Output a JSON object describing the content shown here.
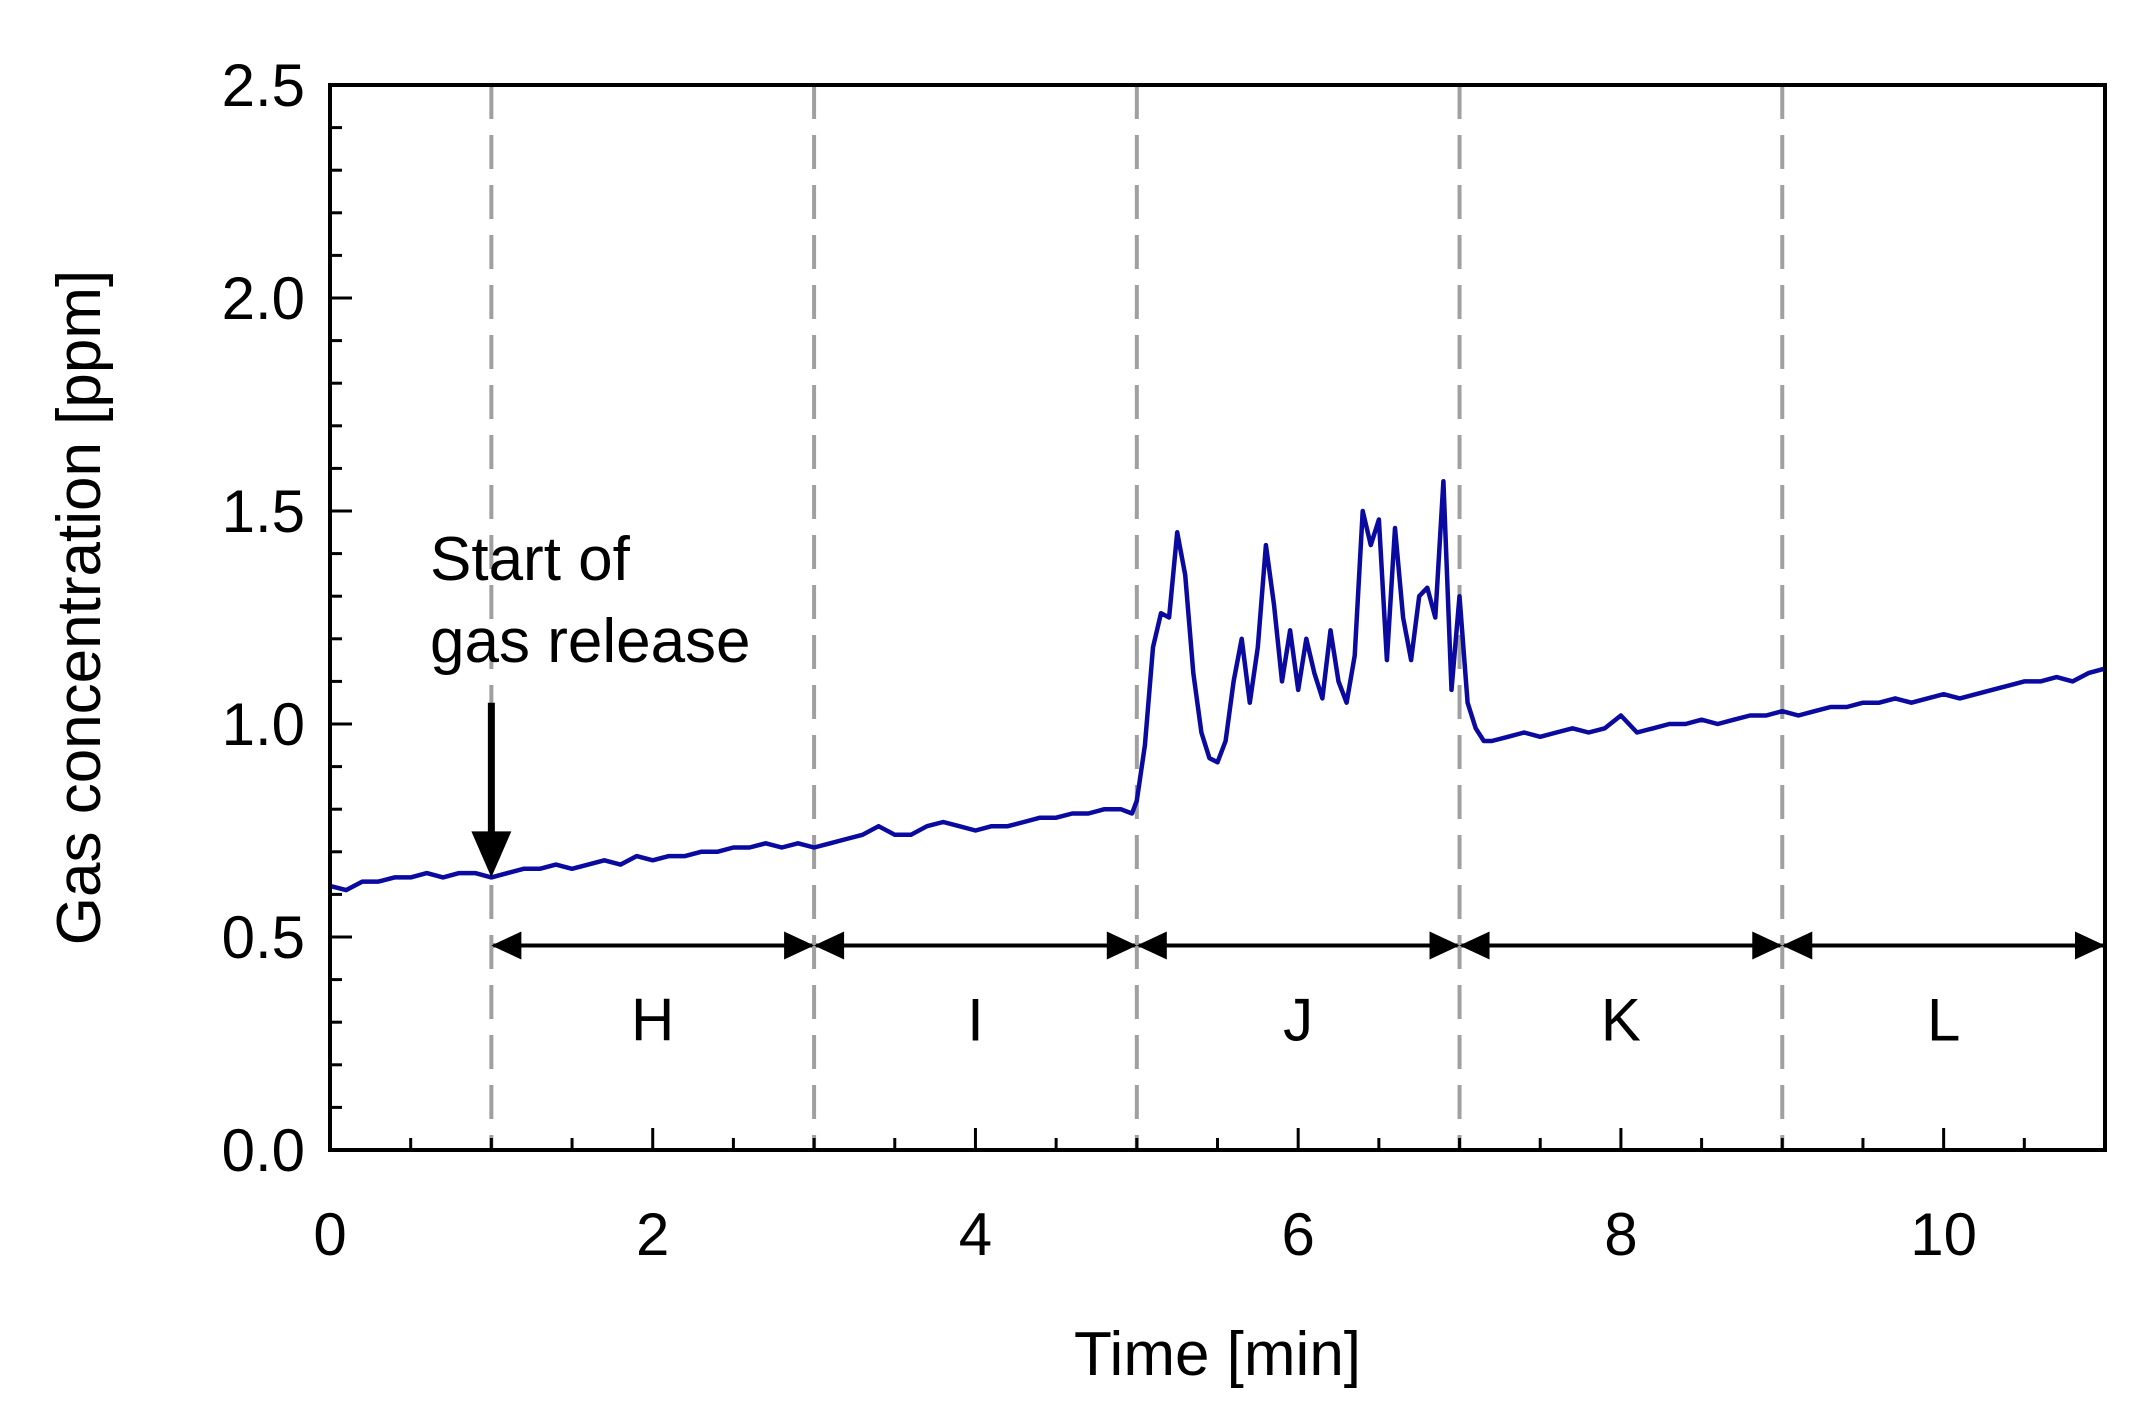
{
  "chart_data": {
    "type": "line",
    "title": "",
    "xlabel": "Time [min]",
    "ylabel": "Gas concentration [ppm]",
    "xlim": [
      0,
      11
    ],
    "ylim": [
      0,
      2.5
    ],
    "x_ticks": [
      0,
      2,
      4,
      6,
      8,
      10
    ],
    "x_tick_labels": [
      "0",
      "2",
      "4",
      "6",
      "8",
      "10"
    ],
    "y_ticks": [
      0,
      0.5,
      1.0,
      1.5,
      2.0,
      2.5
    ],
    "y_tick_labels": [
      "0.0",
      "0.5",
      "1.0",
      "1.5",
      "2.0",
      "2.5"
    ],
    "grid": false,
    "line_color": "#0a0aa0",
    "divider_color": "#a0a0a0",
    "series": [
      {
        "x": [
          0,
          0.1,
          0.2,
          0.3,
          0.4,
          0.5,
          0.6,
          0.7,
          0.8,
          0.9,
          1.0,
          1.1,
          1.2,
          1.3,
          1.4,
          1.5,
          1.6,
          1.7,
          1.8,
          1.9,
          2.0,
          2.1,
          2.2,
          2.3,
          2.4,
          2.5,
          2.6,
          2.7,
          2.8,
          2.9,
          3.0,
          3.1,
          3.2,
          3.3,
          3.4,
          3.5,
          3.6,
          3.7,
          3.8,
          3.9,
          4.0,
          4.1,
          4.2,
          4.3,
          4.4,
          4.5,
          4.6,
          4.7,
          4.8,
          4.9,
          4.97,
          5.0,
          5.05,
          5.1,
          5.15,
          5.2,
          5.25,
          5.3,
          5.35,
          5.4,
          5.45,
          5.5,
          5.55,
          5.6,
          5.65,
          5.7,
          5.75,
          5.8,
          5.85,
          5.9,
          5.95,
          6.0,
          6.05,
          6.1,
          6.15,
          6.2,
          6.25,
          6.3,
          6.35,
          6.4,
          6.45,
          6.5,
          6.55,
          6.6,
          6.65,
          6.7,
          6.75,
          6.8,
          6.85,
          6.9,
          6.95,
          7.0,
          7.05,
          7.1,
          7.15,
          7.2,
          7.3,
          7.4,
          7.5,
          7.6,
          7.7,
          7.8,
          7.9,
          8.0,
          8.1,
          8.2,
          8.3,
          8.4,
          8.5,
          8.6,
          8.7,
          8.8,
          8.9,
          9.0,
          9.1,
          9.2,
          9.3,
          9.4,
          9.5,
          9.6,
          9.7,
          9.8,
          9.9,
          10.0,
          10.1,
          10.2,
          10.3,
          10.4,
          10.5,
          10.6,
          10.7,
          10.8,
          10.9,
          11.0
        ],
        "values": [
          0.62,
          0.61,
          0.63,
          0.63,
          0.64,
          0.64,
          0.65,
          0.64,
          0.65,
          0.65,
          0.64,
          0.65,
          0.66,
          0.66,
          0.67,
          0.66,
          0.67,
          0.68,
          0.67,
          0.69,
          0.68,
          0.69,
          0.69,
          0.7,
          0.7,
          0.71,
          0.71,
          0.72,
          0.71,
          0.72,
          0.71,
          0.72,
          0.73,
          0.74,
          0.76,
          0.74,
          0.74,
          0.76,
          0.77,
          0.76,
          0.75,
          0.76,
          0.76,
          0.77,
          0.78,
          0.78,
          0.79,
          0.79,
          0.8,
          0.8,
          0.79,
          0.82,
          0.95,
          1.18,
          1.26,
          1.25,
          1.45,
          1.35,
          1.12,
          0.98,
          0.92,
          0.91,
          0.96,
          1.1,
          1.2,
          1.05,
          1.18,
          1.42,
          1.28,
          1.1,
          1.22,
          1.08,
          1.2,
          1.12,
          1.06,
          1.22,
          1.1,
          1.05,
          1.16,
          1.5,
          1.42,
          1.48,
          1.15,
          1.46,
          1.25,
          1.15,
          1.3,
          1.32,
          1.25,
          1.57,
          1.08,
          1.3,
          1.05,
          0.99,
          0.96,
          0.96,
          0.97,
          0.98,
          0.97,
          0.98,
          0.99,
          0.98,
          0.99,
          1.02,
          0.98,
          0.99,
          1.0,
          1.0,
          1.01,
          1.0,
          1.01,
          1.02,
          1.02,
          1.03,
          1.02,
          1.03,
          1.04,
          1.04,
          1.05,
          1.05,
          1.06,
          1.05,
          1.06,
          1.07,
          1.06,
          1.07,
          1.08,
          1.09,
          1.1,
          1.1,
          1.11,
          1.1,
          1.12,
          1.13
        ]
      }
    ],
    "phase_dividers": [
      1,
      3,
      5,
      7,
      9
    ],
    "segments": [
      {
        "label": "H",
        "start": 1,
        "end": 3
      },
      {
        "label": "I",
        "start": 3,
        "end": 5
      },
      {
        "label": "J",
        "start": 5,
        "end": 7
      },
      {
        "label": "K",
        "start": 7,
        "end": 9
      },
      {
        "label": "L",
        "start": 9,
        "end": 11
      }
    ],
    "segment_arrow_y": 0.48,
    "annotation": {
      "lines": [
        "Start of",
        "gas release"
      ],
      "arrow_x": 1,
      "arrow_from_y": 1.05,
      "arrow_to_y": 0.64
    }
  }
}
